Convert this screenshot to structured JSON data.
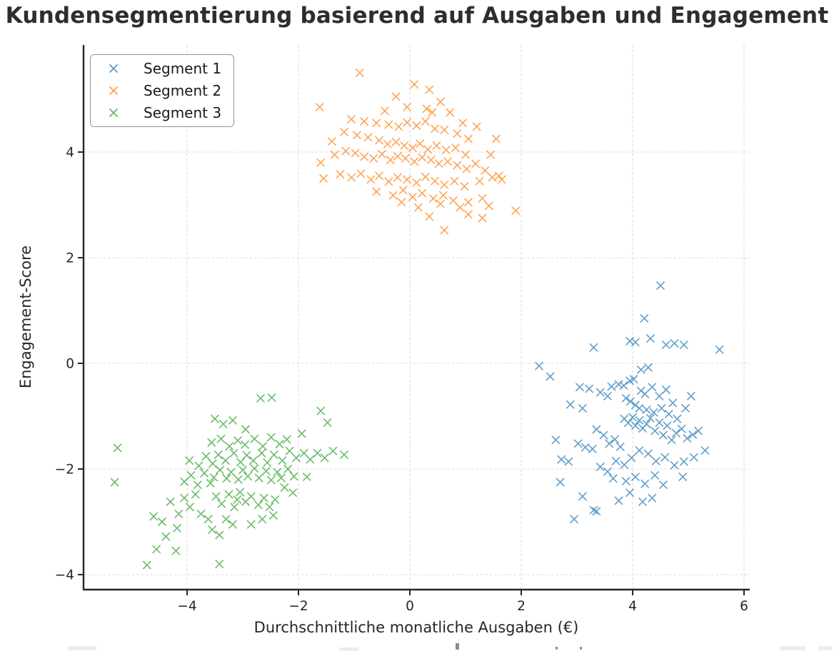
{
  "chart_data": {
    "type": "scatter",
    "title": "Kundensegmentierung basierend auf Ausgaben und Engagement",
    "xlabel": "Durchschnittliche monatliche Ausgaben (€)",
    "ylabel": "Engagement-Score",
    "xlim": [
      -5.9,
      6.1
    ],
    "ylim": [
      -4.3,
      6.0
    ],
    "grid": "dashed",
    "grid_color": "#d9d9d9",
    "axis_color": "#262626",
    "background": "#ffffff",
    "marker": "x",
    "marker_size": 11,
    "marker_opacity": 0.7,
    "legend_position": "upper-left",
    "x_ticks": [
      {
        "value": -4,
        "label": "−4"
      },
      {
        "value": -2,
        "label": "−2"
      },
      {
        "value": 0,
        "label": "0"
      },
      {
        "value": 2,
        "label": "2"
      },
      {
        "value": 4,
        "label": "4"
      },
      {
        "value": 6,
        "label": "6"
      }
    ],
    "y_ticks": [
      {
        "value": -4,
        "label": "−4"
      },
      {
        "value": -2,
        "label": "−2"
      },
      {
        "value": 0,
        "label": "0"
      },
      {
        "value": 2,
        "label": "2"
      },
      {
        "value": 4,
        "label": "4"
      }
    ],
    "series": [
      {
        "name": "Segment 1",
        "color": "#1f77b4",
        "cluster_center": [
          4.0,
          -1.1
        ],
        "points": [
          [
            3.3,
            0.3
          ],
          [
            3.95,
            0.42
          ],
          [
            4.05,
            0.4
          ],
          [
            4.32,
            0.47
          ],
          [
            4.5,
            1.47
          ],
          [
            4.21,
            0.85
          ],
          [
            4.6,
            0.35
          ],
          [
            4.75,
            0.38
          ],
          [
            4.92,
            0.35
          ],
          [
            5.56,
            0.26
          ],
          [
            2.32,
            -0.05
          ],
          [
            2.52,
            -0.25
          ],
          [
            3.05,
            -0.45
          ],
          [
            3.22,
            -0.48
          ],
          [
            3.42,
            -0.55
          ],
          [
            2.88,
            -0.78
          ],
          [
            3.1,
            -0.85
          ],
          [
            3.55,
            -0.62
          ],
          [
            3.62,
            -0.44
          ],
          [
            3.75,
            -0.4
          ],
          [
            3.84,
            -0.42
          ],
          [
            3.95,
            -0.33
          ],
          [
            4.02,
            -0.3
          ],
          [
            4.15,
            -0.52
          ],
          [
            4.22,
            -0.58
          ],
          [
            4.35,
            -0.45
          ],
          [
            4.48,
            -0.62
          ],
          [
            4.6,
            -0.5
          ],
          [
            4.72,
            -0.75
          ],
          [
            4.15,
            -0.12
          ],
          [
            4.28,
            -0.08
          ],
          [
            3.88,
            -0.66
          ],
          [
            3.96,
            -0.72
          ],
          [
            4.05,
            -0.79
          ],
          [
            4.12,
            -0.85
          ],
          [
            4.25,
            -0.88
          ],
          [
            4.38,
            -0.93
          ],
          [
            4.52,
            -0.85
          ],
          [
            4.65,
            -0.96
          ],
          [
            4.8,
            -1.05
          ],
          [
            4.95,
            -0.85
          ],
          [
            5.05,
            -0.62
          ],
          [
            2.62,
            -1.45
          ],
          [
            2.72,
            -1.82
          ],
          [
            2.85,
            -1.86
          ],
          [
            3.02,
            -1.52
          ],
          [
            3.15,
            -1.59
          ],
          [
            3.28,
            -1.62
          ],
          [
            3.35,
            -1.25
          ],
          [
            3.48,
            -1.36
          ],
          [
            3.58,
            -1.52
          ],
          [
            3.68,
            -1.44
          ],
          [
            3.78,
            -1.58
          ],
          [
            3.85,
            -1.05
          ],
          [
            3.92,
            -1.13
          ],
          [
            4.0,
            -1.02
          ],
          [
            4.05,
            -1.18
          ],
          [
            4.12,
            -1.08
          ],
          [
            4.18,
            -1.23
          ],
          [
            4.25,
            -1.15
          ],
          [
            4.32,
            -1.04
          ],
          [
            4.4,
            -1.28
          ],
          [
            4.48,
            -1.12
          ],
          [
            4.55,
            -1.36
          ],
          [
            4.62,
            -1.18
          ],
          [
            4.7,
            -1.45
          ],
          [
            4.78,
            -1.32
          ],
          [
            4.88,
            -1.24
          ],
          [
            4.98,
            -1.42
          ],
          [
            5.08,
            -1.35
          ],
          [
            5.18,
            -1.28
          ],
          [
            5.3,
            -1.65
          ],
          [
            5.1,
            -1.78
          ],
          [
            4.92,
            -1.86
          ],
          [
            4.75,
            -1.93
          ],
          [
            4.58,
            -1.78
          ],
          [
            4.42,
            -1.85
          ],
          [
            4.28,
            -1.71
          ],
          [
            4.12,
            -1.65
          ],
          [
            3.98,
            -1.79
          ],
          [
            3.85,
            -1.92
          ],
          [
            3.7,
            -1.85
          ],
          [
            3.55,
            -2.05
          ],
          [
            3.42,
            -1.96
          ],
          [
            3.65,
            -2.18
          ],
          [
            3.88,
            -2.23
          ],
          [
            4.05,
            -2.15
          ],
          [
            4.22,
            -2.28
          ],
          [
            4.4,
            -2.12
          ],
          [
            4.55,
            -2.3
          ],
          [
            4.9,
            -2.15
          ],
          [
            2.7,
            -2.25
          ],
          [
            3.1,
            -2.52
          ],
          [
            3.95,
            -2.45
          ],
          [
            4.18,
            -2.62
          ],
          [
            3.3,
            -2.78
          ],
          [
            2.95,
            -2.95
          ],
          [
            3.35,
            -2.8
          ],
          [
            4.35,
            -2.55
          ],
          [
            3.75,
            -2.6
          ]
        ]
      },
      {
        "name": "Segment 2",
        "color": "#ff7f0e",
        "cluster_center": [
          0.1,
          3.9
        ],
        "points": [
          [
            -0.9,
            5.5
          ],
          [
            0.08,
            5.28
          ],
          [
            0.35,
            5.18
          ],
          [
            -0.25,
            5.05
          ],
          [
            0.55,
            4.95
          ],
          [
            -1.62,
            4.85
          ],
          [
            -0.45,
            4.78
          ],
          [
            0.72,
            4.75
          ],
          [
            -1.05,
            4.62
          ],
          [
            -0.82,
            4.58
          ],
          [
            -0.6,
            4.55
          ],
          [
            -0.38,
            4.52
          ],
          [
            -0.2,
            4.48
          ],
          [
            -0.05,
            4.56
          ],
          [
            0.12,
            4.5
          ],
          [
            0.28,
            4.58
          ],
          [
            0.45,
            4.44
          ],
          [
            0.62,
            4.42
          ],
          [
            0.85,
            4.35
          ],
          [
            1.05,
            4.25
          ],
          [
            -1.18,
            4.38
          ],
          [
            -0.95,
            4.32
          ],
          [
            -0.75,
            4.28
          ],
          [
            -0.55,
            4.22
          ],
          [
            -0.4,
            4.15
          ],
          [
            -0.25,
            4.19
          ],
          [
            -0.1,
            4.12
          ],
          [
            0.05,
            4.08
          ],
          [
            0.18,
            4.16
          ],
          [
            0.32,
            4.05
          ],
          [
            0.48,
            4.12
          ],
          [
            0.65,
            4.04
          ],
          [
            0.82,
            4.08
          ],
          [
            1.0,
            3.95
          ],
          [
            1.55,
            4.25
          ],
          [
            -1.6,
            3.8
          ],
          [
            -1.35,
            3.95
          ],
          [
            -1.15,
            4.02
          ],
          [
            -0.98,
            3.98
          ],
          [
            -0.82,
            3.91
          ],
          [
            -0.65,
            3.88
          ],
          [
            -0.5,
            3.96
          ],
          [
            -0.35,
            3.85
          ],
          [
            -0.22,
            3.92
          ],
          [
            -0.08,
            3.88
          ],
          [
            0.08,
            3.82
          ],
          [
            0.22,
            3.9
          ],
          [
            0.38,
            3.85
          ],
          [
            0.52,
            3.78
          ],
          [
            0.68,
            3.82
          ],
          [
            0.85,
            3.75
          ],
          [
            1.02,
            3.68
          ],
          [
            1.18,
            3.78
          ],
          [
            1.35,
            3.65
          ],
          [
            -1.55,
            3.5
          ],
          [
            -1.25,
            3.58
          ],
          [
            -1.05,
            3.52
          ],
          [
            -0.88,
            3.59
          ],
          [
            -0.7,
            3.48
          ],
          [
            -0.55,
            3.55
          ],
          [
            -0.38,
            3.44
          ],
          [
            -0.22,
            3.52
          ],
          [
            -0.05,
            3.48
          ],
          [
            0.12,
            3.42
          ],
          [
            0.28,
            3.53
          ],
          [
            0.45,
            3.45
          ],
          [
            0.62,
            3.38
          ],
          [
            0.8,
            3.45
          ],
          [
            0.98,
            3.35
          ],
          [
            1.25,
            3.45
          ],
          [
            1.48,
            3.52
          ],
          [
            1.65,
            3.48
          ],
          [
            -0.6,
            3.25
          ],
          [
            -0.3,
            3.18
          ],
          [
            -0.12,
            3.28
          ],
          [
            0.05,
            3.15
          ],
          [
            0.22,
            3.22
          ],
          [
            0.42,
            3.12
          ],
          [
            0.6,
            3.18
          ],
          [
            0.78,
            3.08
          ],
          [
            1.05,
            3.05
          ],
          [
            1.3,
            3.12
          ],
          [
            1.6,
            3.55
          ],
          [
            1.9,
            2.89
          ],
          [
            1.42,
            2.98
          ],
          [
            0.9,
            2.95
          ],
          [
            0.55,
            3.02
          ],
          [
            0.15,
            2.95
          ],
          [
            -0.15,
            3.05
          ],
          [
            0.35,
            2.78
          ],
          [
            0.62,
            2.52
          ],
          [
            1.05,
            2.82
          ],
          [
            1.3,
            2.75
          ],
          [
            -0.05,
            4.85
          ],
          [
            0.3,
            4.82
          ],
          [
            0.95,
            4.55
          ],
          [
            1.2,
            4.48
          ],
          [
            -1.4,
            4.2
          ],
          [
            1.45,
            3.95
          ],
          [
            0.4,
            4.75
          ]
        ]
      },
      {
        "name": "Segment 3",
        "color": "#2ca02c",
        "cluster_center": [
          -3.0,
          -2.0
        ],
        "points": [
          [
            -5.25,
            -1.6
          ],
          [
            -5.3,
            -2.25
          ],
          [
            -4.72,
            -3.82
          ],
          [
            -4.55,
            -3.52
          ],
          [
            -4.45,
            -3.0
          ],
          [
            -4.38,
            -3.28
          ],
          [
            -4.15,
            -2.85
          ],
          [
            -4.3,
            -2.62
          ],
          [
            -4.05,
            -2.55
          ],
          [
            -3.95,
            -2.72
          ],
          [
            -3.85,
            -2.48
          ],
          [
            -3.75,
            -2.85
          ],
          [
            -3.42,
            -3.8
          ],
          [
            -3.55,
            -3.15
          ],
          [
            -3.42,
            -3.25
          ],
          [
            -3.3,
            -2.95
          ],
          [
            -3.18,
            -3.05
          ],
          [
            -3.62,
            -2.95
          ],
          [
            -3.1,
            -2.58
          ],
          [
            -3.48,
            -2.52
          ],
          [
            -3.38,
            -2.66
          ],
          [
            -3.25,
            -2.48
          ],
          [
            -3.15,
            -2.72
          ],
          [
            -3.05,
            -2.44
          ],
          [
            -2.95,
            -2.62
          ],
          [
            -2.85,
            -2.52
          ],
          [
            -2.72,
            -2.68
          ],
          [
            -2.62,
            -2.55
          ],
          [
            -2.52,
            -2.72
          ],
          [
            -2.42,
            -2.58
          ],
          [
            -2.85,
            -3.05
          ],
          [
            -2.65,
            -2.95
          ],
          [
            -2.45,
            -2.88
          ],
          [
            -4.05,
            -2.24
          ],
          [
            -3.93,
            -2.12
          ],
          [
            -3.81,
            -2.3
          ],
          [
            -3.69,
            -2.08
          ],
          [
            -3.58,
            -2.27
          ],
          [
            -3.52,
            -2.16
          ],
          [
            -3.41,
            -2.02
          ],
          [
            -3.29,
            -2.18
          ],
          [
            -3.21,
            -2.06
          ],
          [
            -3.08,
            -2.2
          ],
          [
            -3.0,
            -2.02
          ],
          [
            -2.91,
            -2.14
          ],
          [
            -2.79,
            -1.99
          ],
          [
            -2.71,
            -2.17
          ],
          [
            -2.58,
            -2.04
          ],
          [
            -2.49,
            -2.21
          ],
          [
            -2.38,
            -2.06
          ],
          [
            -2.31,
            -2.17
          ],
          [
            -2.19,
            -2.0
          ],
          [
            -2.08,
            -2.14
          ],
          [
            -3.96,
            -1.84
          ],
          [
            -3.79,
            -1.94
          ],
          [
            -3.66,
            -1.76
          ],
          [
            -3.54,
            -1.9
          ],
          [
            -3.44,
            -1.73
          ],
          [
            -3.31,
            -1.84
          ],
          [
            -3.16,
            -1.7
          ],
          [
            -3.04,
            -1.87
          ],
          [
            -2.93,
            -1.74
          ],
          [
            -2.81,
            -1.84
          ],
          [
            -2.66,
            -1.7
          ],
          [
            -2.56,
            -1.88
          ],
          [
            -2.44,
            -1.73
          ],
          [
            -2.29,
            -1.84
          ],
          [
            -2.16,
            -1.66
          ],
          [
            -2.04,
            -1.79
          ],
          [
            -1.9,
            -1.7
          ],
          [
            -1.79,
            -1.82
          ],
          [
            -1.66,
            -1.7
          ],
          [
            -1.53,
            -1.79
          ],
          [
            -1.38,
            -1.66
          ],
          [
            -1.18,
            -1.73
          ],
          [
            -3.56,
            -1.5
          ],
          [
            -3.39,
            -1.43
          ],
          [
            -3.24,
            -1.57
          ],
          [
            -3.09,
            -1.46
          ],
          [
            -2.96,
            -1.54
          ],
          [
            -2.79,
            -1.43
          ],
          [
            -2.64,
            -1.57
          ],
          [
            -2.49,
            -1.4
          ],
          [
            -2.34,
            -1.53
          ],
          [
            -2.21,
            -1.44
          ],
          [
            -1.94,
            -1.33
          ],
          [
            -1.6,
            -0.9
          ],
          [
            -1.48,
            -1.12
          ],
          [
            -3.35,
            -1.15
          ],
          [
            -3.18,
            -1.08
          ],
          [
            -3.5,
            -1.05
          ],
          [
            -2.68,
            -0.66
          ],
          [
            -2.48,
            -0.65
          ],
          [
            -2.95,
            -1.25
          ],
          [
            -4.18,
            -3.12
          ],
          [
            -2.25,
            -2.35
          ],
          [
            -2.1,
            -2.45
          ],
          [
            -1.85,
            -2.15
          ],
          [
            -4.6,
            -2.9
          ],
          [
            -4.2,
            -3.55
          ]
        ]
      }
    ]
  }
}
